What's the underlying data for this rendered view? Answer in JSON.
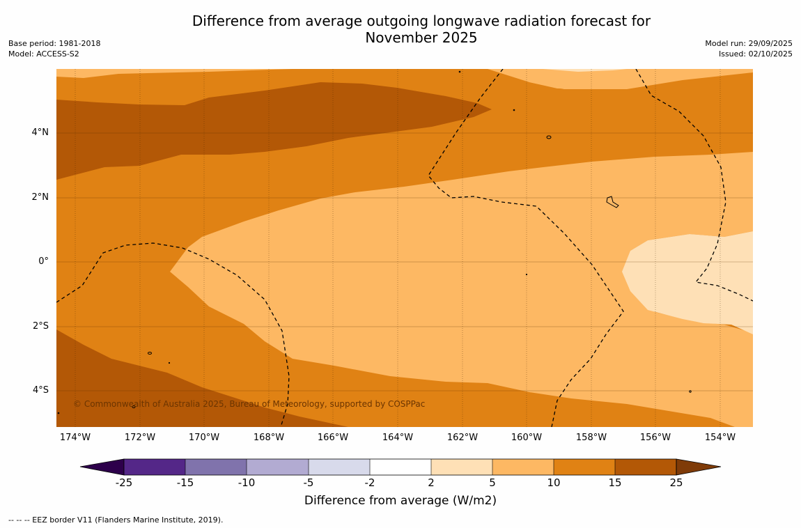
{
  "title_line1": "Difference from average outgoing longwave radiation forecast for",
  "title_line2": "November 2025",
  "base_period": "Base period: 1981-2018",
  "model": "Model: ACCESS-S2",
  "model_run": "Model run: 29/09/2025",
  "issued": "Issued: 02/10/2025",
  "copyright": "© Commonwealth of Australia 2025, Bureau of Meteorology, supported by COSPPac",
  "lat_labels": [
    "4°N",
    "2°N",
    "0°",
    "2°S",
    "4°S"
  ],
  "lon_labels": [
    "174°W",
    "172°W",
    "170°W",
    "168°W",
    "166°W",
    "164°W",
    "162°W",
    "160°W",
    "158°W",
    "156°W",
    "154°W"
  ],
  "colorbar": {
    "title": "Difference from average (W/m2)",
    "ticks": [
      "-25",
      "-15",
      "-10",
      "-5",
      "-2",
      "2",
      "5",
      "10",
      "15",
      "25"
    ],
    "colors": [
      "#2d004b",
      "#542788",
      "#8073ac",
      "#b2abd2",
      "#d8daeb",
      "#ffffff",
      "#fee0b6",
      "#fdb863",
      "#e08214",
      "#b35806",
      "#7f3b08"
    ]
  },
  "footnote": "--  --  -- EEZ border V11 (Flanders Marine Institute, 2019)."
}
